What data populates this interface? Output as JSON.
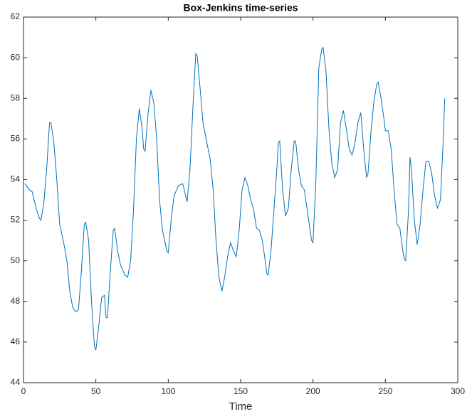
{
  "chart_data": {
    "type": "line",
    "title": "Box-Jenkins time-series",
    "xlabel": "Time",
    "color": "#0072bd",
    "grid": false,
    "xlim": [
      0,
      300
    ],
    "xticks": [
      0,
      50,
      100,
      150,
      200,
      250,
      300
    ],
    "ylim": [
      44,
      62
    ],
    "yticks": [
      44,
      46,
      48,
      50,
      52,
      54,
      56,
      58,
      60,
      62
    ],
    "x": [
      1,
      4,
      6,
      9,
      11,
      12,
      14,
      16,
      18,
      19,
      21,
      23,
      25,
      28,
      30,
      32,
      34,
      36,
      38,
      40,
      42,
      43,
      45,
      47,
      49,
      50,
      52,
      54,
      56,
      57,
      58,
      60,
      62,
      63,
      65,
      67,
      70,
      72,
      74,
      76,
      78,
      80,
      82,
      83,
      84,
      86,
      88,
      90,
      92,
      94,
      96,
      99,
      100,
      102,
      104,
      107,
      110,
      112,
      113,
      115,
      117,
      119,
      120,
      122,
      124,
      127,
      129,
      131,
      133,
      135,
      137,
      139,
      141,
      143,
      145,
      147,
      149,
      151,
      153,
      155,
      157,
      159,
      161,
      163,
      165,
      167,
      168,
      169,
      171,
      173,
      175,
      176,
      177,
      179,
      181,
      183,
      185,
      187,
      188,
      190,
      192,
      194,
      196,
      198,
      199,
      200,
      202,
      204,
      206,
      207,
      209,
      211,
      213,
      215,
      217,
      219,
      221,
      223,
      225,
      227,
      229,
      231,
      233,
      235,
      237,
      238,
      240,
      242,
      244,
      245,
      247,
      249,
      250,
      252,
      254,
      256,
      258,
      260,
      262,
      263,
      264,
      266,
      267,
      268,
      270,
      272,
      274,
      276,
      278,
      280,
      282,
      284,
      286,
      288,
      290,
      291
    ],
    "values": [
      53.8,
      53.5,
      53.4,
      52.5,
      52.1,
      52.0,
      52.8,
      54.5,
      56.8,
      56.8,
      55.8,
      54.0,
      51.8,
      50.8,
      50.0,
      48.5,
      47.7,
      47.5,
      47.6,
      49.5,
      51.8,
      51.9,
      51.0,
      48.0,
      45.8,
      45.6,
      46.8,
      48.2,
      48.3,
      47.2,
      47.2,
      49.5,
      51.5,
      51.6,
      50.5,
      49.8,
      49.3,
      49.2,
      50.0,
      52.5,
      56.0,
      57.5,
      56.5,
      55.5,
      55.4,
      57.2,
      58.4,
      57.8,
      56.0,
      53.0,
      51.5,
      50.5,
      50.4,
      52.0,
      53.2,
      53.7,
      53.8,
      53.2,
      52.9,
      54.5,
      57.5,
      60.2,
      60.1,
      58.5,
      56.8,
      55.7,
      55.0,
      53.5,
      51.0,
      49.2,
      48.5,
      49.2,
      50.2,
      50.9,
      50.5,
      50.2,
      51.5,
      53.5,
      54.1,
      53.7,
      53.0,
      52.5,
      51.6,
      51.5,
      51.0,
      50.0,
      49.4,
      49.3,
      50.5,
      52.5,
      54.5,
      55.8,
      55.9,
      53.5,
      52.2,
      52.6,
      54.5,
      55.9,
      55.9,
      54.5,
      53.7,
      53.5,
      52.5,
      51.5,
      51.0,
      50.9,
      54.0,
      59.5,
      60.4,
      60.5,
      59.3,
      56.5,
      54.8,
      54.1,
      54.5,
      56.8,
      57.4,
      56.5,
      55.5,
      55.2,
      55.8,
      56.8,
      57.3,
      55.5,
      54.1,
      54.3,
      56.3,
      57.8,
      58.7,
      58.8,
      58.0,
      57.0,
      56.4,
      56.4,
      55.5,
      53.5,
      51.8,
      51.6,
      50.5,
      50.1,
      50.0,
      52.5,
      55.1,
      54.5,
      52.0,
      50.8,
      51.8,
      53.5,
      54.9,
      54.9,
      54.3,
      53.2,
      52.6,
      53.0,
      56.0,
      58.0
    ]
  }
}
